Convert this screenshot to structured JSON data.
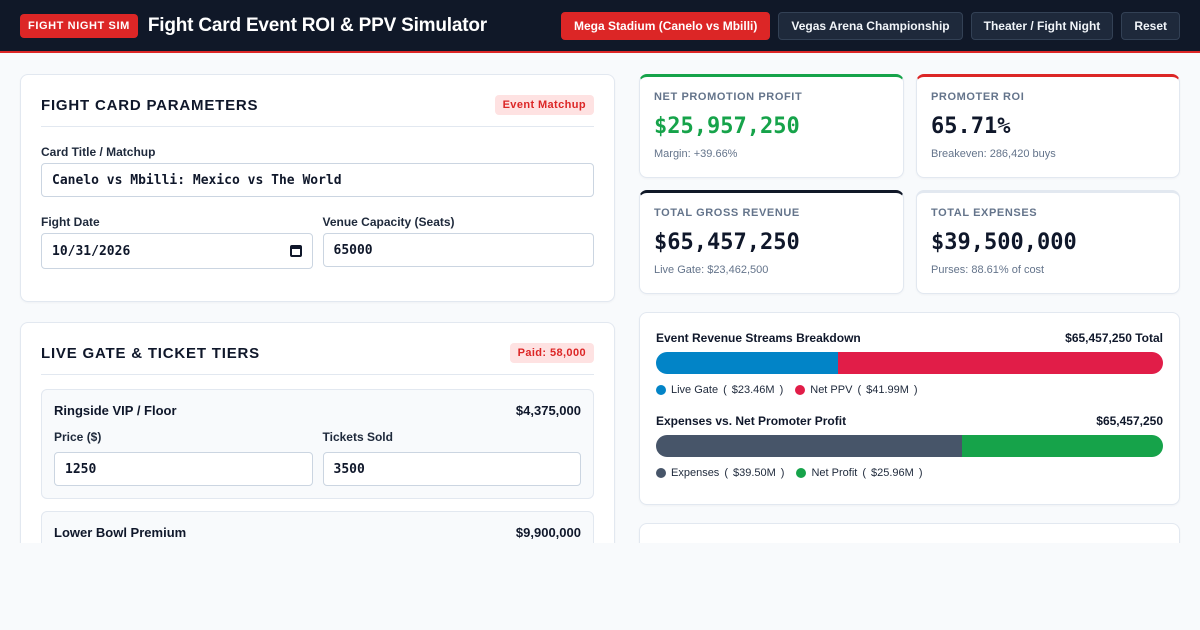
{
  "header": {
    "badge": "FIGHT NIGHT SIM",
    "title": "Fight Card Event ROI & PPV Simulator",
    "presets": [
      {
        "label": "Mega Stadium (Canelo vs Mbilli)",
        "active": true
      },
      {
        "label": "Vegas Arena Championship",
        "active": false
      },
      {
        "label": "Theater / Fight Night",
        "active": false
      },
      {
        "label": "Reset",
        "active": false
      }
    ]
  },
  "parameters": {
    "heading": "FIGHT CARD PARAMETERS",
    "badge": "Event Matchup",
    "title_label": "Card Title / Matchup",
    "title_value": "Canelo vs Mbilli: Mexico vs The World",
    "date_label": "Fight Date",
    "date_value": "10/31/2026",
    "capacity_label": "Venue Capacity (Seats)",
    "capacity_value": "65000"
  },
  "live_gate": {
    "heading": "LIVE GATE & TICKET TIERS",
    "badge": "Paid: 58,000",
    "price_label": "Price ($)",
    "sold_label": "Tickets Sold",
    "tiers": [
      {
        "name": "Ringside VIP / Floor",
        "total": "$4,375,000",
        "price": "1250",
        "sold": "3500"
      },
      {
        "name": "Lower Bowl Premium",
        "total": "$9,900,000"
      }
    ]
  },
  "kpis": {
    "net_profit": {
      "label": "NET PROMOTION PROFIT",
      "value": "$25,957,250",
      "sub": "Margin: +39.66%"
    },
    "roi": {
      "label": "PROMOTER ROI",
      "value": "65.71%",
      "sub": "Breakeven: 286,420 buys"
    },
    "gross": {
      "label": "TOTAL GROSS REVENUE",
      "value": "$65,457,250",
      "sub": "Live Gate: $23,462,500"
    },
    "expenses": {
      "label": "TOTAL EXPENSES",
      "value": "$39,500,000",
      "sub": "Purses: 88.61% of cost"
    }
  },
  "breakdown": {
    "revenue": {
      "title": "Event Revenue Streams Breakdown",
      "total": "$65,457,250 Total",
      "segments": [
        {
          "name": "Live Gate",
          "amount": "$23.46M",
          "value": 23.46,
          "color": "#0284c7"
        },
        {
          "name": "Net PPV",
          "amount": "$41.99M",
          "value": 41.99,
          "color": "#e11d48"
        }
      ]
    },
    "profit": {
      "title": "Expenses vs. Net Promoter Profit",
      "total": "$65,457,250",
      "segments": [
        {
          "name": "Expenses",
          "amount": "$39.50M",
          "value": 39.5,
          "color": "#475569"
        },
        {
          "name": "Net Profit",
          "amount": "$25.96M",
          "value": 25.96,
          "color": "#16a34a"
        }
      ]
    }
  },
  "colors": {
    "accent": "#dc2626",
    "navy": "#101828",
    "profit_green": "#16a34a"
  }
}
